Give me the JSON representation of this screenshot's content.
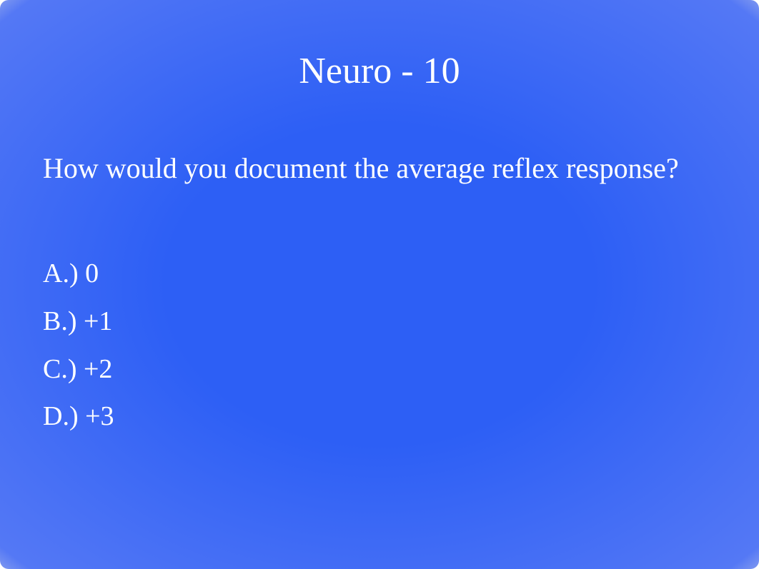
{
  "slide": {
    "title": "Neuro - 10",
    "question": "How would you document the average reflex response?",
    "options": [
      "A.) 0",
      "B.) +1",
      "C.) +2",
      "D.) +3"
    ],
    "background_color_center": "#2d5ff5",
    "background_color_edge": "#8099f0",
    "text_color": "#ffffff",
    "title_fontsize": 52,
    "body_fontsize": 40,
    "option_fontsize": 38
  }
}
